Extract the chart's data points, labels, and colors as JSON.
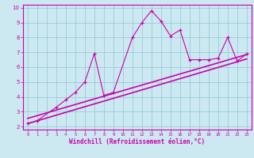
{
  "title": "",
  "xlabel": "Windchill (Refroidissement éolien,°C)",
  "bg_color": "#cce8f0",
  "line_color": "#cc00aa",
  "grid_color": "#99ccdd",
  "xlim": [
    -0.5,
    23.5
  ],
  "ylim": [
    1.8,
    10.2
  ],
  "xticks": [
    0,
    1,
    2,
    3,
    4,
    5,
    6,
    7,
    8,
    9,
    10,
    11,
    12,
    13,
    14,
    15,
    16,
    17,
    18,
    19,
    20,
    21,
    22,
    23
  ],
  "yticks": [
    2,
    3,
    4,
    5,
    6,
    7,
    8,
    9,
    10
  ],
  "jagged_x": [
    0,
    1,
    3,
    4,
    5,
    6,
    7,
    8,
    9,
    11,
    12,
    13,
    14,
    15,
    16,
    17,
    18,
    19,
    20,
    21,
    22,
    23
  ],
  "jagged_y": [
    2.2,
    2.4,
    3.3,
    3.8,
    4.3,
    5.0,
    6.9,
    4.1,
    4.3,
    8.0,
    9.0,
    9.8,
    9.1,
    8.1,
    8.5,
    6.5,
    6.5,
    6.5,
    6.6,
    8.0,
    6.4,
    6.9
  ],
  "line1_x": [
    0,
    23
  ],
  "line1_y": [
    2.2,
    6.55
  ],
  "line2_x": [
    0,
    23
  ],
  "line2_y": [
    2.55,
    6.85
  ],
  "marker": "+"
}
